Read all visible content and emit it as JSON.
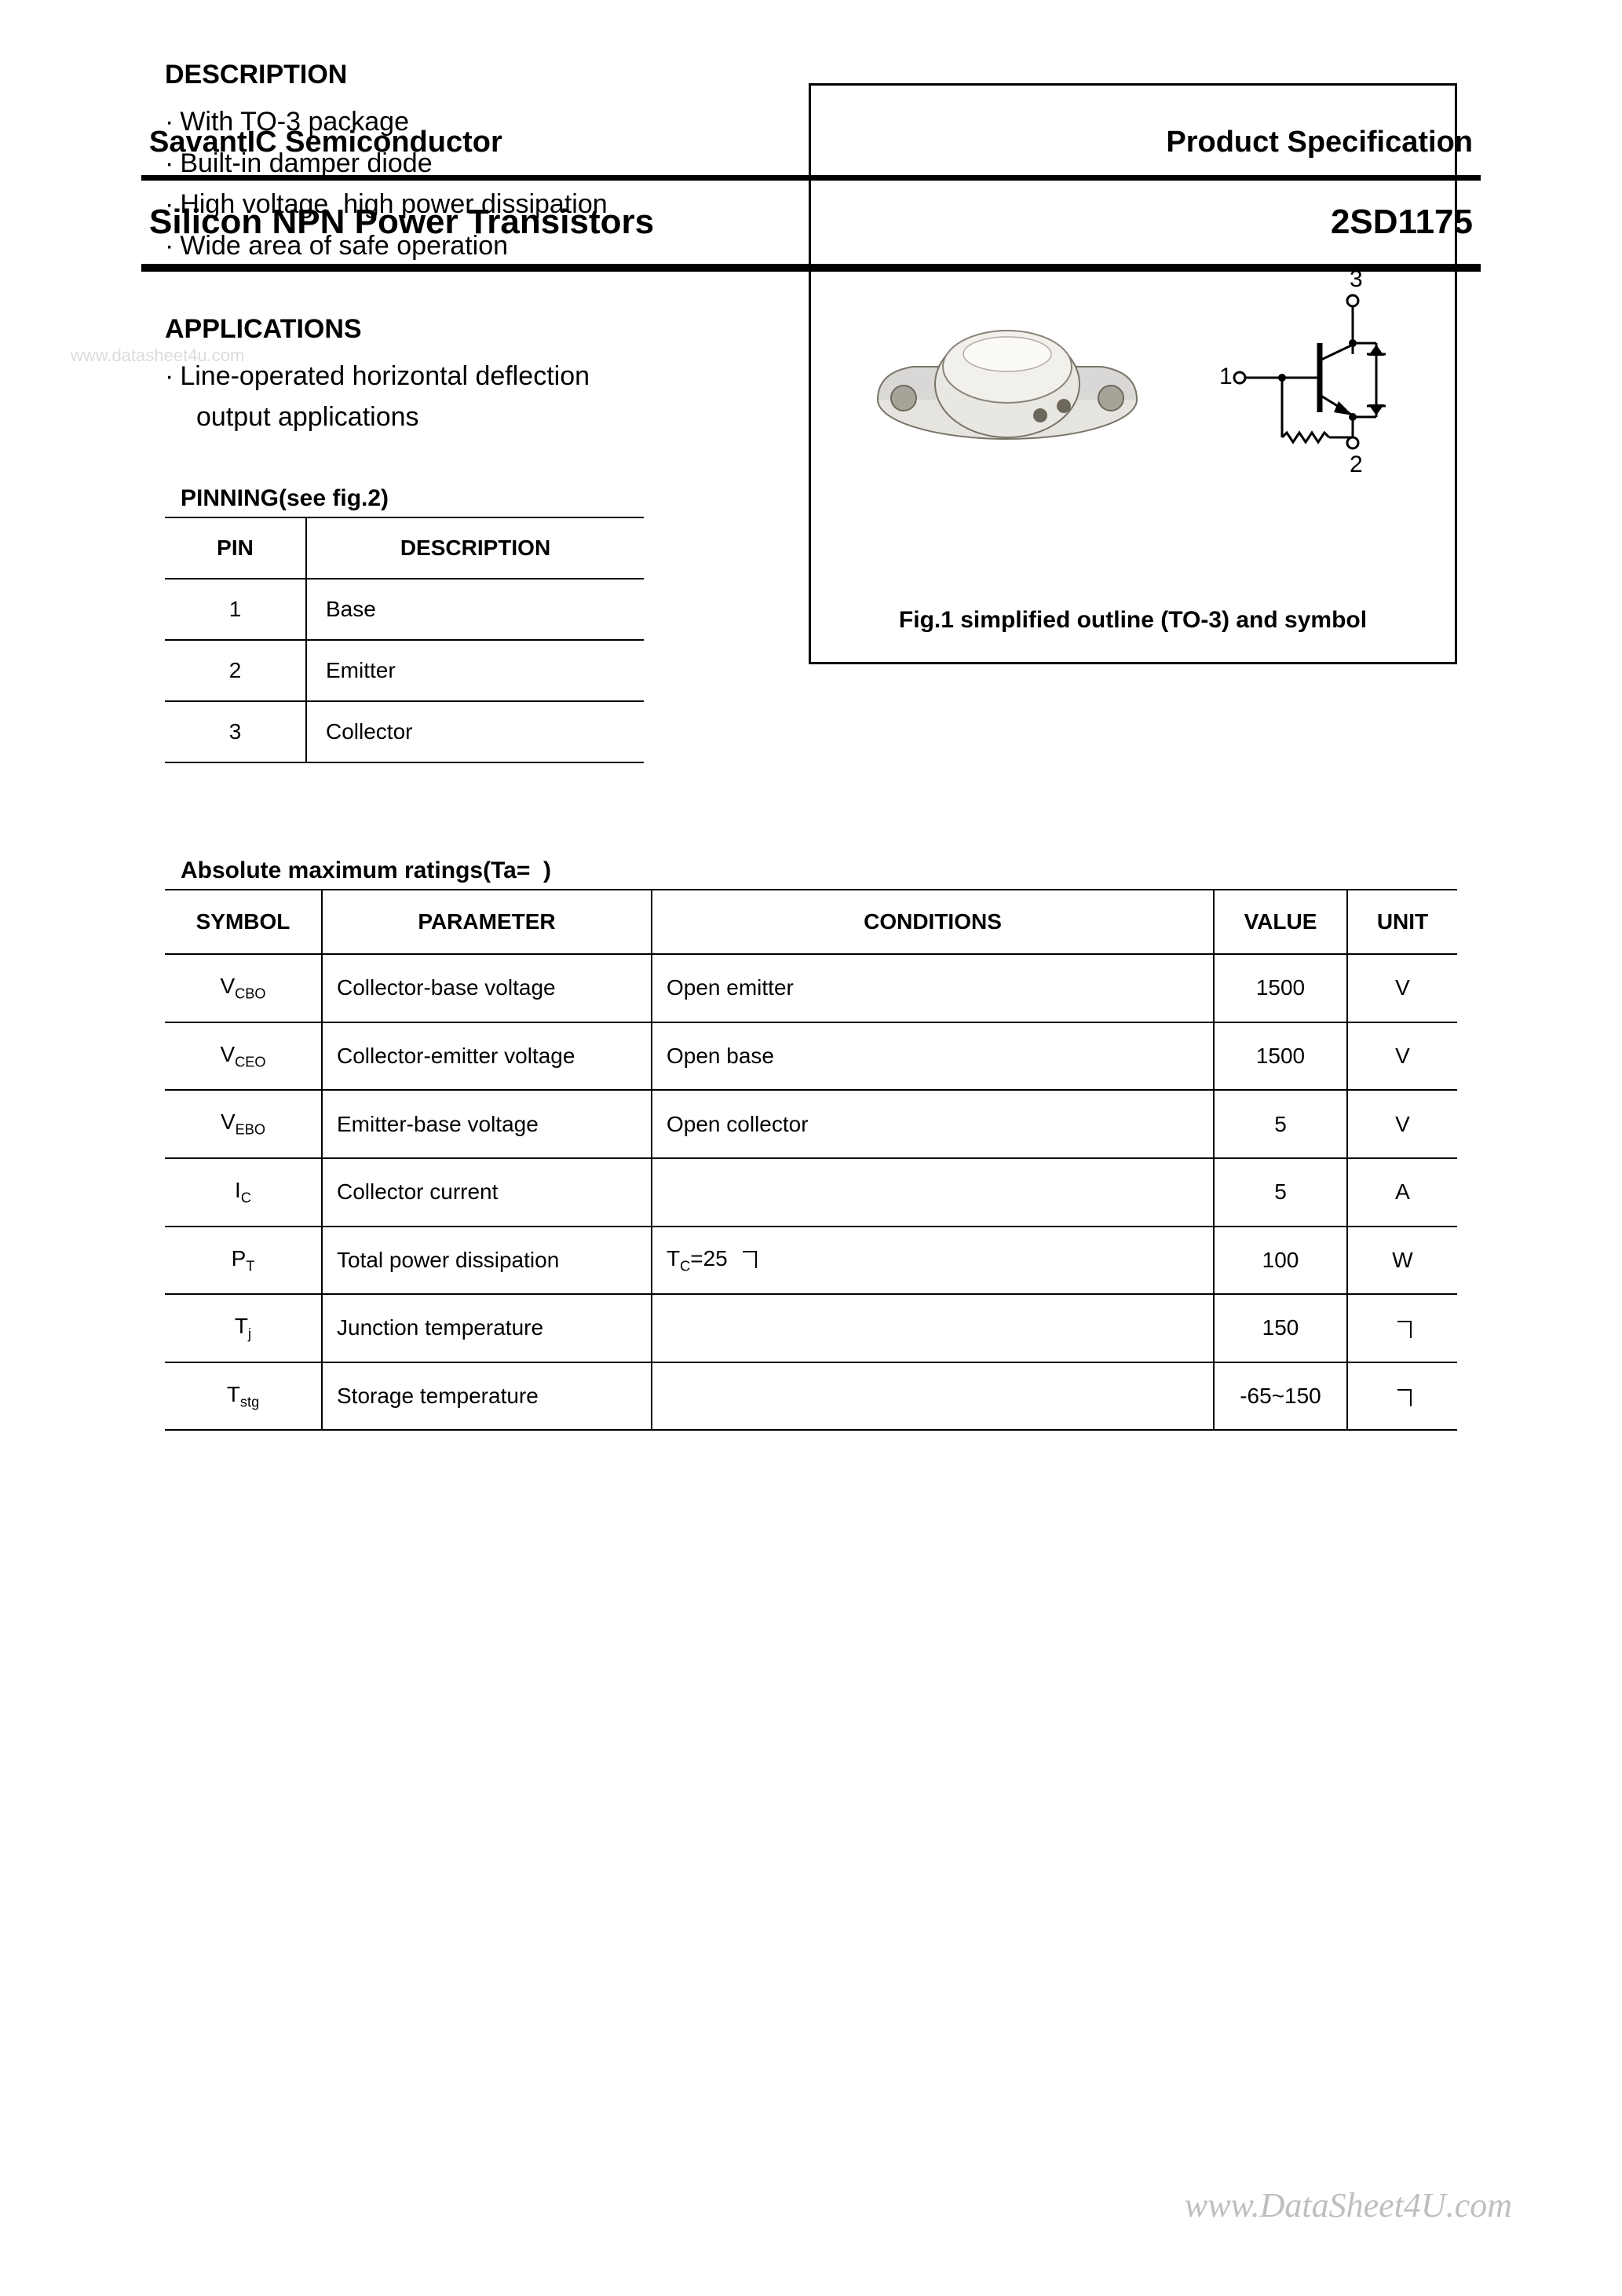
{
  "header": {
    "company": "SavantIC Semiconductor",
    "spec_label": "Product Specification"
  },
  "title": {
    "product": "Silicon NPN Power Transistors",
    "part_number": "2SD1175"
  },
  "description": {
    "heading": "DESCRIPTION",
    "items": [
      "With TO-3 package",
      "Built-in damper diode",
      "High voltage ,high power dissipation",
      "Wide area of safe operation"
    ]
  },
  "applications": {
    "heading": "APPLICATIONS",
    "items": [
      "Line-operated horizontal deflection",
      "output applications"
    ]
  },
  "pinning": {
    "heading": "PINNING(see fig.2)",
    "columns": [
      "PIN",
      "DESCRIPTION"
    ],
    "rows": [
      [
        "1",
        "Base"
      ],
      [
        "2",
        "Emitter"
      ],
      [
        "3",
        "Collector"
      ]
    ]
  },
  "figure": {
    "caption": "Fig.1 simplified outline (TO-3) and symbol",
    "pin_labels": {
      "base": "1",
      "emitter": "2",
      "collector": "3"
    }
  },
  "ratings": {
    "heading": "Absolute maximum ratings(Ta=  )",
    "columns": [
      "SYMBOL",
      "PARAMETER",
      "CONDITIONS",
      "VALUE",
      "UNIT"
    ],
    "rows": [
      {
        "sym_main": "V",
        "sym_sub": "CBO",
        "param": "Collector-base voltage",
        "cond": "Open emitter",
        "value": "1500",
        "unit": "V"
      },
      {
        "sym_main": "V",
        "sym_sub": "CEO",
        "param": "Collector-emitter voltage",
        "cond": "Open base",
        "value": "1500",
        "unit": "V"
      },
      {
        "sym_main": "V",
        "sym_sub": "EBO",
        "param": "Emitter-base voltage",
        "cond": "Open collector",
        "value": "5",
        "unit": "V"
      },
      {
        "sym_main": "I",
        "sym_sub": "C",
        "param": "Collector current",
        "cond": "",
        "value": "5",
        "unit": "A"
      },
      {
        "sym_main": "P",
        "sym_sub": "T",
        "param": "Total power dissipation",
        "cond": "T<sub>C</sub>=25  ",
        "cond_has_box": true,
        "value": "100",
        "unit": "W"
      },
      {
        "sym_main": "T",
        "sym_sub": "j",
        "param": "Junction temperature",
        "cond": "",
        "value": "150",
        "unit": "",
        "unit_box": true
      },
      {
        "sym_main": "T",
        "sym_sub": "stg",
        "param": "Storage temperature",
        "cond": "",
        "value": "-65~150",
        "unit": "",
        "unit_box": true
      }
    ]
  },
  "watermarks": {
    "tl": "www.datasheet4u.com",
    "br": "www.DataSheet4U.com"
  },
  "colors": {
    "text": "#000000",
    "background": "#ffffff",
    "watermark_light": "#dcdcdc",
    "watermark_gray": "#bfbfbf",
    "package_gray": "#d9d8d6",
    "package_dark": "#8a847b"
  }
}
